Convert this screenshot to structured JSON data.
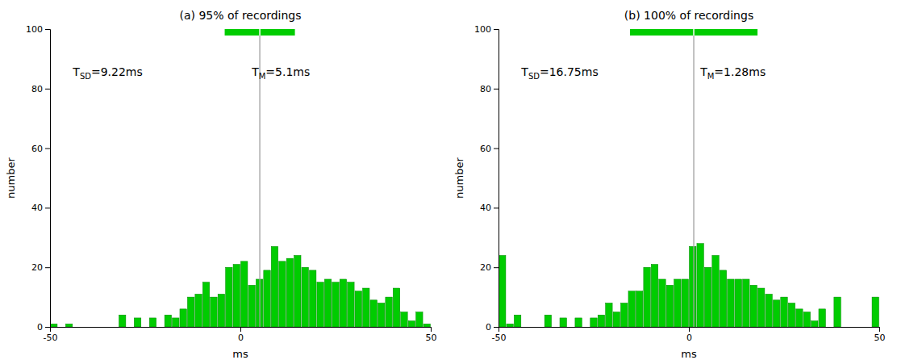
{
  "chart_data": [
    {
      "type": "histogram",
      "title": "(a) 95% of recordings",
      "xlabel": "ms",
      "ylabel": "number",
      "bins": [
        -50,
        -48,
        -46,
        -44,
        -42,
        -40,
        -38,
        -36,
        -34,
        -32,
        -30,
        -28,
        -26,
        -24,
        -22,
        -20,
        -18,
        -16,
        -14,
        -12,
        -10,
        -8,
        -6,
        -4,
        -2,
        0,
        2,
        4,
        6,
        8,
        10,
        12,
        14,
        16,
        18,
        20,
        22,
        24,
        26,
        28,
        30,
        32,
        34,
        36,
        38,
        40,
        42,
        44,
        46,
        48,
        50
      ],
      "values": [
        1,
        0,
        1,
        0,
        0,
        0,
        0,
        0,
        0,
        4,
        0,
        3,
        0,
        3,
        0,
        4,
        3,
        6,
        10,
        11,
        15,
        10,
        11,
        20,
        21,
        22,
        14,
        16,
        19,
        27,
        22,
        23,
        24,
        20,
        19,
        15,
        16,
        15,
        16,
        15,
        12,
        13,
        9,
        8,
        10,
        13,
        5,
        2,
        5,
        1
      ],
      "color": "#00cc00",
      "xlim": [
        -50,
        50
      ],
      "ylim": [
        0,
        100
      ],
      "xticks": [
        -50,
        0,
        50
      ],
      "yticks": [
        0,
        20,
        40,
        60,
        80,
        100
      ],
      "grid": false,
      "mean": 5.1,
      "sd": 9.22,
      "annotations": [
        "TSD=9.22ms",
        "TM=5.1ms"
      ]
    },
    {
      "type": "histogram",
      "title": "(b) 100% of recordings",
      "xlabel": "ms",
      "ylabel": "number",
      "bins": [
        -50,
        -48,
        -46,
        -44,
        -42,
        -40,
        -38,
        -36,
        -34,
        -32,
        -30,
        -28,
        -26,
        -24,
        -22,
        -20,
        -18,
        -16,
        -14,
        -12,
        -10,
        -8,
        -6,
        -4,
        -2,
        0,
        2,
        4,
        6,
        8,
        10,
        12,
        14,
        16,
        18,
        20,
        22,
        24,
        26,
        28,
        30,
        32,
        34,
        36,
        38,
        40,
        42,
        44,
        46,
        48,
        50
      ],
      "values": [
        24,
        1,
        4,
        0,
        0,
        0,
        4,
        0,
        3,
        0,
        3,
        0,
        3,
        4,
        8,
        5,
        8,
        12,
        12,
        20,
        21,
        16,
        14,
        16,
        16,
        27,
        28,
        20,
        24,
        19,
        16,
        16,
        16,
        14,
        13,
        11,
        9,
        10,
        8,
        6,
        5,
        2,
        6,
        0,
        10,
        0,
        0,
        0,
        0,
        10
      ],
      "color": "#00cc00",
      "xlim": [
        -50,
        50
      ],
      "ylim": [
        0,
        100
      ],
      "xticks": [
        -50,
        0,
        50
      ],
      "yticks": [
        0,
        20,
        40,
        60,
        80,
        100
      ],
      "grid": false,
      "mean": 1.28,
      "sd": 16.75,
      "annotations": [
        "TSD=16.75ms",
        "TM=1.28ms"
      ]
    }
  ]
}
